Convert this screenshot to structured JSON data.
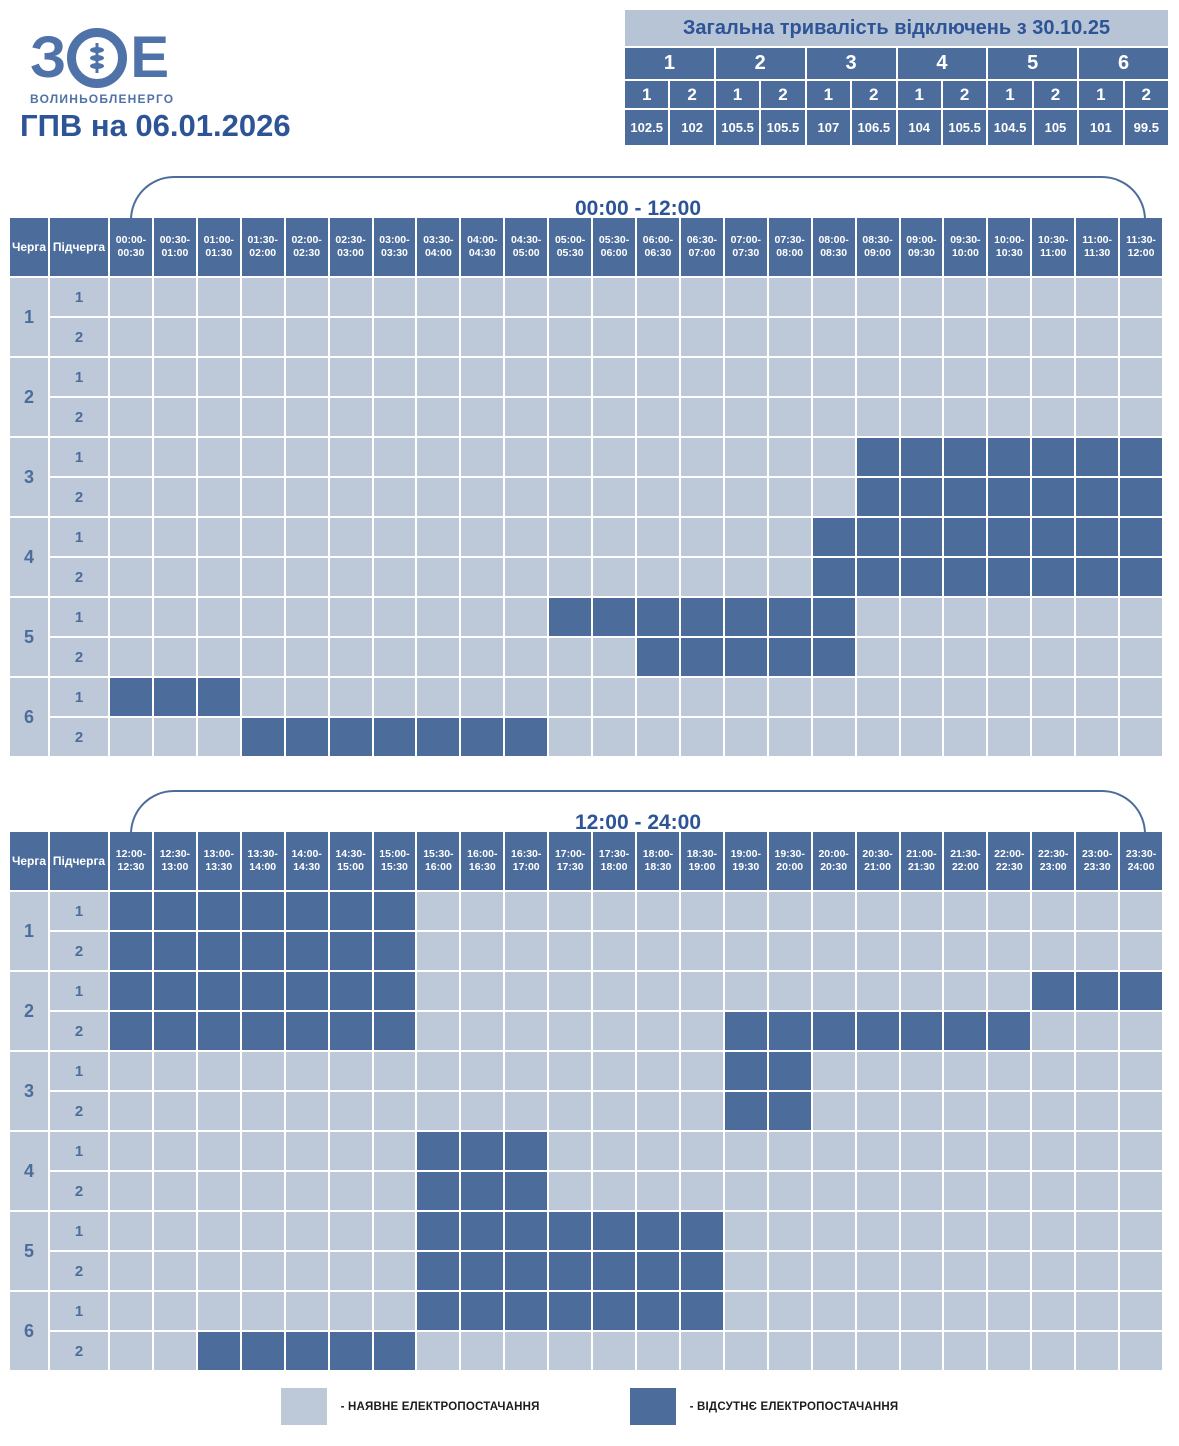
{
  "logo": {
    "letters": [
      "З",
      "Е"
    ],
    "caption": "ВОЛИНЬОБЛЕНЕРГО"
  },
  "page_title": "ГПВ на 06.01.2026",
  "summary": {
    "title": "Загальна тривалість відключень з 30.10.25",
    "queues": [
      {
        "queue": "1",
        "subs": [
          {
            "label": "1",
            "value": "102.5"
          },
          {
            "label": "2",
            "value": "102"
          }
        ]
      },
      {
        "queue": "2",
        "subs": [
          {
            "label": "1",
            "value": "105.5"
          },
          {
            "label": "2",
            "value": "105.5"
          }
        ]
      },
      {
        "queue": "3",
        "subs": [
          {
            "label": "1",
            "value": "107"
          },
          {
            "label": "2",
            "value": "106.5"
          }
        ]
      },
      {
        "queue": "4",
        "subs": [
          {
            "label": "1",
            "value": "104"
          },
          {
            "label": "2",
            "value": "105.5"
          }
        ]
      },
      {
        "queue": "5",
        "subs": [
          {
            "label": "1",
            "value": "104.5"
          },
          {
            "label": "2",
            "value": "105"
          }
        ]
      },
      {
        "queue": "6",
        "subs": [
          {
            "label": "1",
            "value": "101"
          },
          {
            "label": "2",
            "value": "99.5"
          }
        ]
      }
    ]
  },
  "schedule_tables": [
    {
      "bracket_label": "00:00 - 12:00",
      "corner": {
        "queue": "Черга",
        "subqueue": "Підчерга"
      },
      "time_slots": [
        "00:00-00:30",
        "00:30-01:00",
        "01:00-01:30",
        "01:30-02:00",
        "02:00-02:30",
        "02:30-03:00",
        "03:00-03:30",
        "03:30-04:00",
        "04:00-04:30",
        "04:30-05:00",
        "05:00-05:30",
        "05:30-06:00",
        "06:00-06:30",
        "06:30-07:00",
        "07:00-07:30",
        "07:30-08:00",
        "08:00-08:30",
        "08:30-09:00",
        "09:00-09:30",
        "09:30-10:00",
        "10:00-10:30",
        "10:30-11:00",
        "11:00-11:30",
        "11:30-12:00"
      ],
      "queues": [
        {
          "label": "1",
          "subqueues": [
            {
              "label": "1",
              "outage_ranges": []
            },
            {
              "label": "2",
              "outage_ranges": []
            }
          ]
        },
        {
          "label": "2",
          "subqueues": [
            {
              "label": "1",
              "outage_ranges": []
            },
            {
              "label": "2",
              "outage_ranges": []
            }
          ]
        },
        {
          "label": "3",
          "subqueues": [
            {
              "label": "1",
              "outage_ranges": [
                [
                  18,
                  24
                ]
              ]
            },
            {
              "label": "2",
              "outage_ranges": [
                [
                  18,
                  24
                ]
              ]
            }
          ]
        },
        {
          "label": "4",
          "subqueues": [
            {
              "label": "1",
              "outage_ranges": [
                [
                  17,
                  24
                ]
              ]
            },
            {
              "label": "2",
              "outage_ranges": [
                [
                  17,
                  24
                ]
              ]
            }
          ]
        },
        {
          "label": "5",
          "subqueues": [
            {
              "label": "1",
              "outage_ranges": [
                [
                  11,
                  17
                ]
              ]
            },
            {
              "label": "2",
              "outage_ranges": [
                [
                  13,
                  17
                ]
              ]
            }
          ]
        },
        {
          "label": "6",
          "subqueues": [
            {
              "label": "1",
              "outage_ranges": [
                [
                  1,
                  3
                ]
              ]
            },
            {
              "label": "2",
              "outage_ranges": [
                [
                  4,
                  10
                ]
              ]
            }
          ]
        }
      ]
    },
    {
      "bracket_label": "12:00 - 24:00",
      "corner": {
        "queue": "Черга",
        "subqueue": "Підчерга"
      },
      "time_slots": [
        "12:00-12:30",
        "12:30-13:00",
        "13:00-13:30",
        "13:30-14:00",
        "14:00-14:30",
        "14:30-15:00",
        "15:00-15:30",
        "15:30-16:00",
        "16:00-16:30",
        "16:30-17:00",
        "17:00-17:30",
        "17:30-18:00",
        "18:00-18:30",
        "18:30-19:00",
        "19:00-19:30",
        "19:30-20:00",
        "20:00-20:30",
        "20:30-21:00",
        "21:00-21:30",
        "21:30-22:00",
        "22:00-22:30",
        "22:30-23:00",
        "23:00-23:30",
        "23:30-24:00"
      ],
      "queues": [
        {
          "label": "1",
          "subqueues": [
            {
              "label": "1",
              "outage_ranges": [
                [
                  1,
                  7
                ]
              ]
            },
            {
              "label": "2",
              "outage_ranges": [
                [
                  1,
                  7
                ]
              ]
            }
          ]
        },
        {
          "label": "2",
          "subqueues": [
            {
              "label": "1",
              "outage_ranges": [
                [
                  1,
                  7
                ],
                [
                  22,
                  24
                ]
              ]
            },
            {
              "label": "2",
              "outage_ranges": [
                [
                  1,
                  7
                ],
                [
                  15,
                  21
                ]
              ]
            }
          ]
        },
        {
          "label": "3",
          "subqueues": [
            {
              "label": "1",
              "outage_ranges": [
                [
                  15,
                  16
                ]
              ]
            },
            {
              "label": "2",
              "outage_ranges": [
                [
                  15,
                  16
                ]
              ]
            }
          ]
        },
        {
          "label": "4",
          "subqueues": [
            {
              "label": "1",
              "outage_ranges": [
                [
                  8,
                  10
                ]
              ]
            },
            {
              "label": "2",
              "outage_ranges": [
                [
                  8,
                  10
                ]
              ]
            }
          ]
        },
        {
          "label": "5",
          "subqueues": [
            {
              "label": "1",
              "outage_ranges": [
                [
                  8,
                  14
                ]
              ]
            },
            {
              "label": "2",
              "outage_ranges": [
                [
                  8,
                  14
                ]
              ]
            }
          ]
        },
        {
          "label": "6",
          "subqueues": [
            {
              "label": "1",
              "outage_ranges": [
                [
                  8,
                  14
                ]
              ]
            },
            {
              "label": "2",
              "outage_ranges": [
                [
                  3,
                  7
                ]
              ]
            }
          ]
        }
      ]
    }
  ],
  "legend": {
    "available": {
      "label": "- НАЯВНЕ ЕЛЕКТРОПОСТАЧАННЯ",
      "color": "#bdc9d8"
    },
    "absent": {
      "label": "- ВІДСУТНЄ ЕЛЕКТРОПОСТАЧАННЯ",
      "color": "#4c6d9c"
    }
  },
  "colors": {
    "dark_blue": "#4c6d9c",
    "light_blue": "#bdc9d8",
    "title_text": "#2d5496",
    "logo_blue": "#4f72a8"
  }
}
